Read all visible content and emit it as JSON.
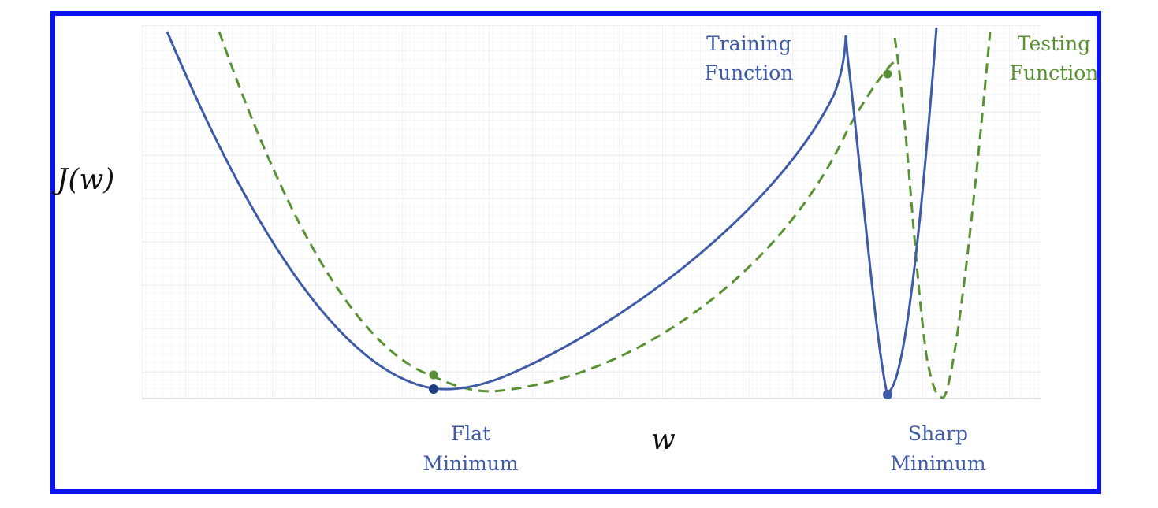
{
  "frame": {
    "border_color": "#0a14f0"
  },
  "axes": {
    "y_label": "J(w)",
    "x_label": "w"
  },
  "curves": {
    "training": {
      "label_line1": "Training",
      "label_line2": "Function",
      "color": "#3f5aa6",
      "style": "solid"
    },
    "testing": {
      "label_line1": "Testing",
      "label_line2": "Function",
      "color": "#5a9132",
      "style": "dashed"
    }
  },
  "annotations": {
    "flat": {
      "line1": "Flat",
      "line2": "Minimum"
    },
    "sharp": {
      "line1": "Sharp",
      "line2": "Minimum"
    }
  }
}
